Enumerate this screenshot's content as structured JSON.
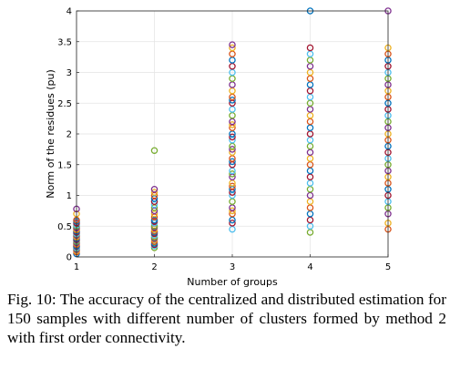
{
  "chart_data": {
    "type": "scatter",
    "title": "",
    "xlabel": "Number of groups",
    "ylabel": "Norm of the residues (pu)",
    "x_ticks": [
      "1",
      "2",
      "3",
      "4",
      "5"
    ],
    "y_ticks": [
      "0",
      "0.5",
      "1",
      "1.5",
      "2",
      "2.5",
      "3",
      "3.5",
      "4"
    ],
    "xlim": [
      1,
      5
    ],
    "ylim": [
      0,
      4
    ],
    "grid": true,
    "marker": "open-circle",
    "marker_colors": [
      "#0072bd",
      "#d95319",
      "#edb120",
      "#7e2f8e",
      "#77ac30",
      "#4dbeee",
      "#a2142f"
    ],
    "series": [
      {
        "x": 1,
        "values": [
          0.05,
          0.08,
          0.1,
          0.12,
          0.14,
          0.15,
          0.17,
          0.18,
          0.2,
          0.22,
          0.23,
          0.25,
          0.27,
          0.28,
          0.3,
          0.32,
          0.33,
          0.35,
          0.37,
          0.38,
          0.4,
          0.42,
          0.44,
          0.45,
          0.47,
          0.5,
          0.52,
          0.55,
          0.58,
          0.6,
          0.7,
          0.78
        ]
      },
      {
        "x": 2,
        "values": [
          0.15,
          0.18,
          0.2,
          0.22,
          0.25,
          0.28,
          0.3,
          0.32,
          0.35,
          0.38,
          0.4,
          0.42,
          0.45,
          0.48,
          0.5,
          0.55,
          0.58,
          0.6,
          0.65,
          0.7,
          0.75,
          0.8,
          0.85,
          0.9,
          0.95,
          1.0,
          1.05,
          1.1,
          1.73
        ]
      },
      {
        "x": 3,
        "values": [
          0.45,
          0.55,
          0.6,
          0.7,
          0.75,
          0.8,
          0.9,
          1.0,
          1.05,
          1.1,
          1.15,
          1.2,
          1.3,
          1.35,
          1.4,
          1.5,
          1.55,
          1.6,
          1.7,
          1.75,
          1.8,
          1.9,
          1.95,
          2.0,
          2.1,
          2.15,
          2.2,
          2.3,
          2.4,
          2.5,
          2.55,
          2.6,
          2.7,
          2.8,
          2.9,
          3.0,
          3.1,
          3.2,
          3.3,
          3.4,
          3.45
        ]
      },
      {
        "x": 4,
        "values": [
          0.4,
          0.5,
          0.6,
          0.7,
          0.8,
          0.9,
          1.0,
          1.1,
          1.2,
          1.3,
          1.4,
          1.5,
          1.6,
          1.7,
          1.8,
          1.9,
          2.0,
          2.1,
          2.2,
          2.3,
          2.4,
          2.5,
          2.6,
          2.7,
          2.8,
          2.9,
          3.0,
          3.1,
          3.2,
          3.3,
          3.4,
          4.0
        ]
      },
      {
        "x": 5,
        "values": [
          0.45,
          0.55,
          0.7,
          0.8,
          0.9,
          1.0,
          1.1,
          1.2,
          1.3,
          1.4,
          1.5,
          1.6,
          1.7,
          1.8,
          1.9,
          2.0,
          2.1,
          2.2,
          2.3,
          2.4,
          2.5,
          2.6,
          2.7,
          2.8,
          2.9,
          3.0,
          3.1,
          3.2,
          3.3,
          3.4,
          4.0
        ]
      }
    ]
  },
  "caption": {
    "figure_number": "Fig. 10:",
    "text": "The accuracy of the centralized and distributed estimation for 150 samples with different number of clusters formed by method 2 with first order connectivity."
  }
}
